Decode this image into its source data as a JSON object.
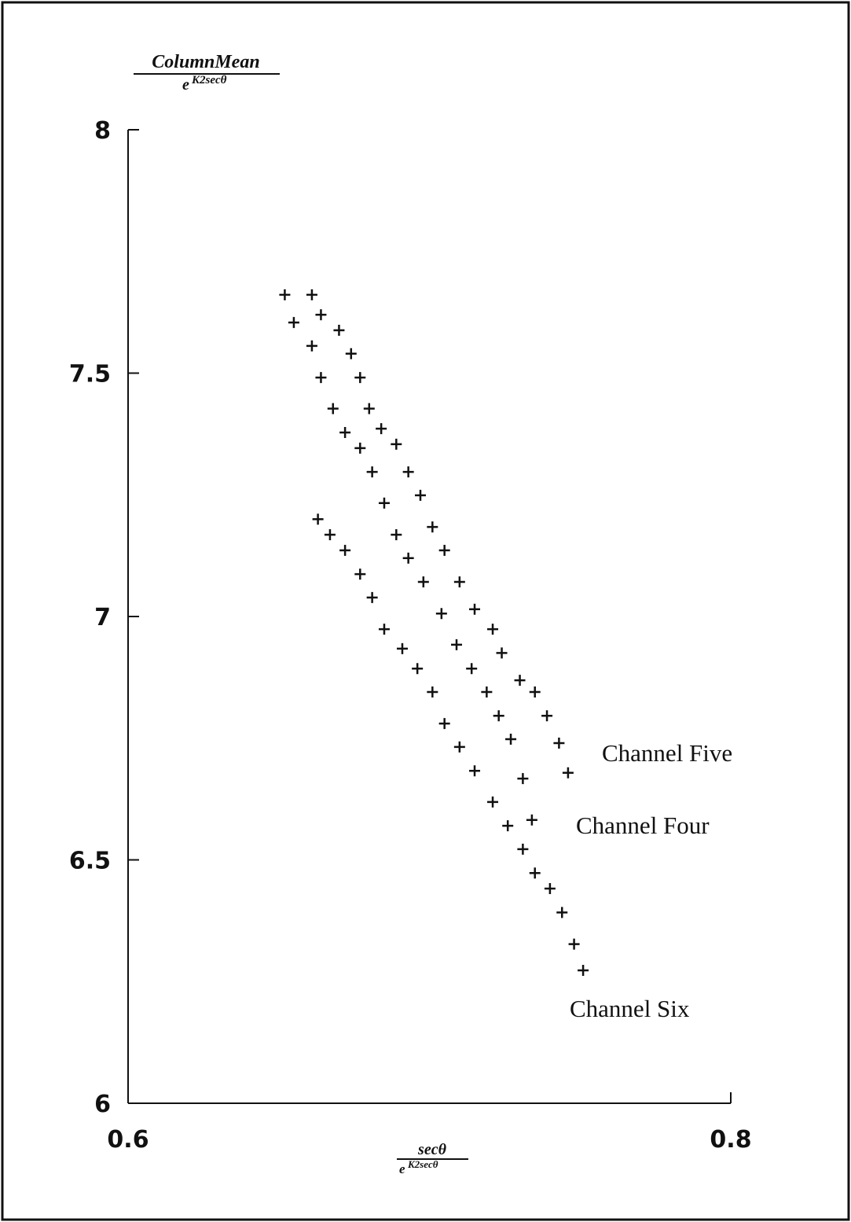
{
  "chart_data": {
    "type": "scatter",
    "y_label_numerator": "ColumnMean",
    "y_label_denominator_base": "e",
    "y_label_denominator_exponent": "K2secθ",
    "x_label_numerator": "secθ",
    "x_label_denominator_base": "e",
    "x_label_denominator_exponent": "K2secθ",
    "xlim": [
      0.6,
      0.8
    ],
    "xticks": [
      0.6,
      0.8
    ],
    "ylim": [
      6,
      8
    ],
    "yticks": [
      6,
      6.5,
      7,
      7.5,
      8
    ],
    "series": [
      {
        "name": "Channel Five",
        "color": "#111111",
        "x": [
          0.661,
          0.664,
          0.67,
          0.674,
          0.677,
          0.68,
          0.684,
          0.689,
          0.693,
          0.697,
          0.701,
          0.705,
          0.71,
          0.715,
          0.721,
          0.724,
          0.73,
          0.735,
          0.739,
          0.743,
          0.746
        ],
        "values": [
          7.661,
          7.62,
          7.588,
          7.54,
          7.491,
          7.427,
          7.386,
          7.354,
          7.297,
          7.249,
          7.184,
          7.136,
          7.071,
          7.015,
          6.974,
          6.925,
          6.869,
          6.845,
          6.796,
          6.74,
          6.679
        ]
      },
      {
        "name": "Channel Four",
        "color": "#111111",
        "x": [
          0.652,
          0.655,
          0.661,
          0.664,
          0.668,
          0.672,
          0.677,
          0.681,
          0.685,
          0.689,
          0.693,
          0.698,
          0.704,
          0.709,
          0.714,
          0.719,
          0.723,
          0.727,
          0.731,
          0.734
        ],
        "values": [
          7.661,
          7.604,
          7.556,
          7.491,
          7.427,
          7.378,
          7.346,
          7.297,
          7.233,
          7.168,
          7.12,
          7.071,
          7.006,
          6.942,
          6.893,
          6.845,
          6.796,
          6.748,
          6.667,
          6.582
        ]
      },
      {
        "name": "Channel Six",
        "color": "#111111",
        "x": [
          0.663,
          0.667,
          0.672,
          0.677,
          0.681,
          0.685,
          0.691,
          0.696,
          0.701,
          0.705,
          0.71,
          0.715,
          0.721,
          0.726,
          0.731,
          0.735,
          0.74,
          0.744,
          0.748,
          0.751
        ],
        "values": [
          7.2,
          7.168,
          7.136,
          7.087,
          7.039,
          6.974,
          6.934,
          6.893,
          6.845,
          6.78,
          6.732,
          6.683,
          6.619,
          6.57,
          6.522,
          6.473,
          6.441,
          6.392,
          6.327,
          6.273
        ]
      }
    ]
  }
}
